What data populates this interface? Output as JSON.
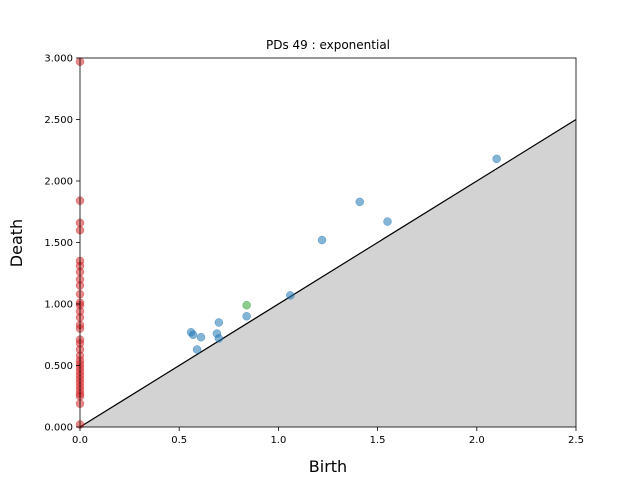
{
  "chart_data": {
    "type": "scatter",
    "title": "PDs 49 : exponential",
    "xlabel": "Birth",
    "ylabel": "Death",
    "xlim": [
      0.0,
      2.5
    ],
    "ylim": [
      0.0,
      3.0
    ],
    "x_ticks": [
      "0.0",
      "0.5",
      "1.0",
      "1.5",
      "2.0",
      "2.5"
    ],
    "y_ticks": [
      "0.000",
      "0.500",
      "1.000",
      "1.500",
      "2.000",
      "2.500",
      "3.000"
    ],
    "grid": false,
    "diagonal": {
      "from": [
        0.0,
        0.0
      ],
      "to": [
        2.5,
        2.5
      ],
      "color": "#000000",
      "fill_below": "#d3d3d3"
    },
    "series": [
      {
        "color": "#d62728",
        "points": [
          [
            0,
            2.97
          ],
          [
            0,
            1.84
          ],
          [
            0,
            1.66
          ],
          [
            0,
            1.6
          ],
          [
            0,
            1.35
          ],
          [
            0,
            1.31
          ],
          [
            0,
            1.26
          ],
          [
            0,
            1.2
          ],
          [
            0,
            1.15
          ],
          [
            0,
            1.08
          ],
          [
            0,
            1.01
          ],
          [
            0,
            0.99
          ],
          [
            0,
            0.94
          ],
          [
            0,
            0.89
          ],
          [
            0,
            0.83
          ],
          [
            0,
            0.8
          ],
          [
            0,
            0.71
          ],
          [
            0,
            0.68
          ],
          [
            0,
            0.63
          ],
          [
            0,
            0.58
          ],
          [
            0,
            0.54
          ],
          [
            0,
            0.51
          ],
          [
            0,
            0.48
          ],
          [
            0,
            0.45
          ],
          [
            0,
            0.42
          ],
          [
            0,
            0.39
          ],
          [
            0,
            0.36
          ],
          [
            0,
            0.33
          ],
          [
            0,
            0.3
          ],
          [
            0,
            0.27
          ],
          [
            0,
            0.25
          ],
          [
            0,
            0.19
          ],
          [
            0,
            0.02
          ]
        ]
      },
      {
        "color": "#1f77b4",
        "points": [
          [
            0.56,
            0.77
          ],
          [
            0.57,
            0.75
          ],
          [
            0.59,
            0.63
          ],
          [
            0.61,
            0.73
          ],
          [
            0.69,
            0.76
          ],
          [
            0.7,
            0.85
          ],
          [
            0.7,
            0.72
          ],
          [
            0.84,
            0.9
          ],
          [
            1.06,
            1.07
          ],
          [
            1.22,
            1.52
          ],
          [
            1.41,
            1.83
          ],
          [
            1.55,
            1.67
          ],
          [
            2.1,
            2.18
          ]
        ]
      },
      {
        "color": "#2ca02c",
        "points": [
          [
            0.84,
            0.99
          ]
        ]
      }
    ]
  }
}
